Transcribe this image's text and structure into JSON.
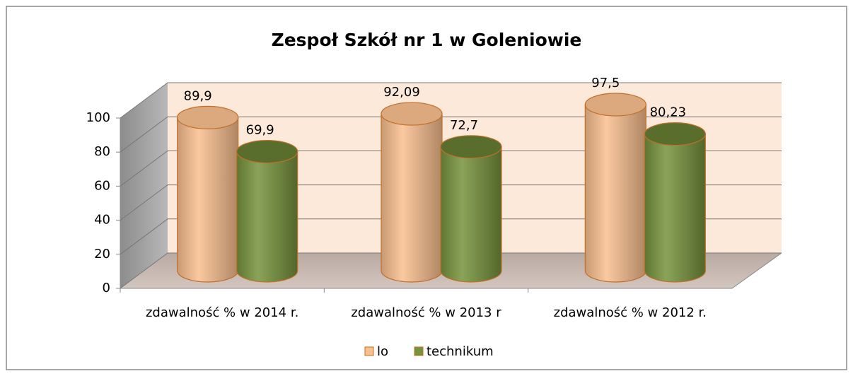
{
  "chart_data": {
    "type": "bar3d",
    "title": "Zespoł Szkół nr 1 w Goleniowie",
    "categories": [
      "zdawalność % w 2014 r.",
      "zdawalność % w 2013 r",
      "zdawalność % w 2012 r."
    ],
    "series": [
      {
        "name": "lo",
        "color": "#fabf8f",
        "values": [
          89.9,
          92.09,
          97.5
        ],
        "value_labels": [
          "89,9",
          "92,09",
          "97,5"
        ]
      },
      {
        "name": "technikum",
        "color": "#77933c",
        "values": [
          69.9,
          72.7,
          80.23
        ],
        "value_labels": [
          "69,9",
          "72,7",
          "80,23"
        ]
      }
    ],
    "ylim": [
      0,
      100
    ],
    "yticks": [
      0,
      20,
      40,
      60,
      80,
      100
    ],
    "grid": true,
    "legend": "bottom"
  }
}
